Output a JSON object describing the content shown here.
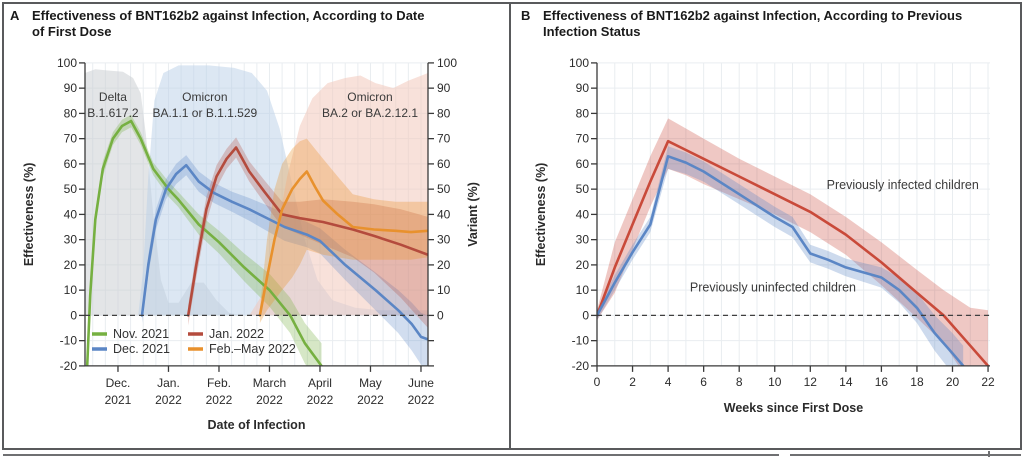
{
  "style": {
    "background": "#ffffff",
    "border_color": "#595a5c",
    "grid_color": "#e9edf0",
    "axis_color": "#3a3a3a",
    "zero_line_color": "#3f3f3f",
    "text_color": "#2b2b2b",
    "annotation_color": "#3a3a3a"
  },
  "chart_data": [
    {
      "id": "A",
      "type": "line",
      "panel_label": "A",
      "title": "Effectiveness of BNT162b2 against Infection, According to Date\nof First Dose",
      "xlabel": "Date of Infection",
      "ylabel_left": "Effectiveness (%)",
      "ylabel_right": "Variant (%)",
      "x_unit": "months since Dec 1, 2021",
      "xlim": [
        -0.653,
        6.139
      ],
      "ylim": [
        -20,
        100
      ],
      "grid_x_step": 0.25,
      "y_ticks_left": [
        -20,
        -10,
        0,
        10,
        20,
        30,
        40,
        50,
        60,
        70,
        80,
        90,
        100
      ],
      "y_ticks_right": [
        0,
        10,
        20,
        30,
        40,
        50,
        60,
        70,
        80,
        90,
        100
      ],
      "x_ticks": [
        {
          "pos": 0,
          "l1": "Dec.",
          "l2": "2021"
        },
        {
          "pos": 1,
          "l1": "Jan.",
          "l2": "2022"
        },
        {
          "pos": 2,
          "l1": "Feb.",
          "l2": "2022"
        },
        {
          "pos": 3,
          "l1": "March",
          "l2": "2022"
        },
        {
          "pos": 4,
          "l1": "April",
          "l2": "2022"
        },
        {
          "pos": 5,
          "l1": "May",
          "l2": "2022"
        },
        {
          "pos": 6,
          "l1": "June",
          "l2": "2022"
        }
      ],
      "variant_regions": [
        {
          "slug": "delta",
          "name": "Delta B.1.617.2",
          "label_lines": [
            "Delta",
            "B.1.617.2"
          ],
          "label_x": -0.1,
          "fill": "#c8ccd0",
          "opacity": 0.5,
          "top": [
            [
              -0.653,
              96
            ],
            [
              -0.45,
              97.5
            ],
            [
              -0.2,
              97
            ],
            [
              0.1,
              96.5
            ],
            [
              0.3,
              94
            ],
            [
              0.45,
              88
            ],
            [
              0.55,
              72
            ],
            [
              0.7,
              40
            ],
            [
              0.85,
              14
            ],
            [
              1.0,
              5
            ],
            [
              1.2,
              5
            ],
            [
              1.45,
              13
            ],
            [
              1.7,
              13
            ],
            [
              1.95,
              6
            ],
            [
              2.2,
              1
            ],
            [
              2.45,
              0
            ]
          ]
        },
        {
          "slug": "omicron-ba1",
          "name": "Omicron BA.1.1 or B.1.1.529",
          "label_lines": [
            "Omicron",
            "BA.1.1 or B.1.1.529"
          ],
          "label_x": 1.72,
          "fill": "#b9d0e8",
          "opacity": 0.5,
          "top": [
            [
              0.4,
              0
            ],
            [
              0.5,
              18
            ],
            [
              0.6,
              55
            ],
            [
              0.72,
              85
            ],
            [
              0.9,
              96
            ],
            [
              1.2,
              99
            ],
            [
              1.8,
              99
            ],
            [
              2.3,
              98
            ],
            [
              2.65,
              96
            ],
            [
              2.95,
              89
            ],
            [
              3.2,
              74
            ],
            [
              3.45,
              52
            ],
            [
              3.7,
              30
            ],
            [
              3.95,
              14
            ],
            [
              4.25,
              6
            ],
            [
              4.7,
              3
            ],
            [
              5.2,
              2
            ],
            [
              6.139,
              2
            ]
          ]
        },
        {
          "slug": "omicron-ba2",
          "name": "Omicron BA.2 or BA.2.12.1",
          "label_lines": [
            "Omicron",
            "BA.2 or BA.2.12.1"
          ],
          "label_x": 4.99,
          "fill": "#f2c9bc",
          "opacity": 0.55,
          "top": [
            [
              2.6,
              0
            ],
            [
              2.85,
              8
            ],
            [
              3.1,
              28
            ],
            [
              3.35,
              55
            ],
            [
              3.6,
              75
            ],
            [
              3.85,
              86
            ],
            [
              4.15,
              92
            ],
            [
              4.5,
              94
            ],
            [
              4.8,
              95
            ],
            [
              5.1,
              92
            ],
            [
              5.45,
              90
            ],
            [
              5.75,
              93
            ],
            [
              6.139,
              96
            ]
          ]
        }
      ],
      "series": [
        {
          "name": "Nov. 2021",
          "color": "#76b041",
          "band_opacity": 0.3,
          "x": [
            -0.61,
            -0.55,
            -0.45,
            -0.3,
            -0.1,
            0.08,
            0.26,
            0.45,
            0.7,
            1.0,
            1.19,
            1.6,
            2.0,
            2.5,
            3.0,
            3.41,
            3.7,
            4.03
          ],
          "y": [
            -20,
            8,
            38,
            58,
            70,
            75,
            77,
            70,
            58,
            50,
            46,
            36,
            29,
            19,
            10,
            0,
            -11,
            -20
          ],
          "lo": [
            -23,
            5,
            35,
            55,
            67.5,
            72.5,
            74.5,
            67.5,
            55.5,
            47,
            43,
            32,
            24.5,
            13.5,
            3.5,
            -7,
            -19,
            -29
          ],
          "hi": [
            -17,
            11,
            41,
            61,
            72.5,
            77.5,
            79.5,
            72.5,
            60.5,
            53,
            49,
            40,
            33.5,
            24.5,
            16.5,
            7,
            -3,
            -11
          ]
        },
        {
          "name": "Dec. 2021",
          "color": "#5b86c5",
          "band_opacity": 0.28,
          "x": [
            0.475,
            0.6,
            0.75,
            0.95,
            1.15,
            1.35,
            1.6,
            1.9,
            2.26,
            2.6,
            2.9,
            3.3,
            3.74,
            4.0,
            4.5,
            5.1,
            5.55,
            5.82,
            6.0,
            6.139
          ],
          "y": [
            0,
            20,
            38,
            50,
            56,
            59.5,
            53,
            48.5,
            45,
            42,
            39,
            35,
            32,
            29.5,
            20,
            10,
            2,
            -3.5,
            -8.5,
            -9.5
          ],
          "lo": [
            -3,
            16,
            34,
            46,
            52,
            55.5,
            49,
            44.5,
            41,
            37.5,
            34,
            29.5,
            27,
            24.5,
            14,
            2,
            -7,
            -14,
            -19.5,
            -22
          ],
          "hi": [
            3,
            24,
            42,
            54,
            60,
            63.5,
            57,
            52.5,
            49,
            46.5,
            44,
            40.5,
            37,
            34.5,
            26,
            17,
            10,
            5,
            1,
            0
          ]
        },
        {
          "name": "Jan. 2022",
          "color": "#b44b3d",
          "band_opacity": 0.28,
          "x": [
            1.39,
            1.55,
            1.75,
            1.95,
            2.15,
            2.34,
            2.6,
            2.9,
            3.25,
            3.6,
            4.06,
            4.65,
            5.07,
            5.6,
            6.139
          ],
          "y": [
            0,
            20,
            42,
            55,
            62,
            66.5,
            57,
            49,
            40,
            38.5,
            37,
            34,
            31.5,
            28,
            24
          ],
          "lo": [
            -4,
            15,
            37,
            50.5,
            58,
            62.5,
            53,
            44.5,
            35,
            32,
            28,
            23,
            17,
            7,
            -5
          ],
          "hi": [
            4,
            25,
            47,
            59.5,
            66,
            70.5,
            61,
            53.5,
            45,
            45,
            46,
            45,
            44,
            42,
            39
          ]
        },
        {
          "name": "Feb.–May 2022",
          "color": "#e8912d",
          "band_opacity": 0.32,
          "x": [
            2.81,
            2.95,
            3.1,
            3.25,
            3.45,
            3.6,
            3.74,
            3.9,
            4.06,
            4.35,
            4.65,
            5.07,
            5.5,
            5.8,
            6.139
          ],
          "y": [
            0,
            15,
            30,
            42,
            50,
            54,
            57,
            51,
            45.5,
            40,
            35,
            34,
            33.5,
            33,
            33.5
          ],
          "lo": [
            -3,
            2,
            6,
            10,
            15,
            20,
            26,
            25,
            24,
            23,
            22,
            22,
            22,
            22,
            23
          ],
          "hi": [
            3,
            30,
            50,
            60,
            66,
            69,
            70,
            66,
            62,
            55,
            48,
            46,
            45,
            45,
            45
          ]
        }
      ],
      "legend_order": [
        [
          0,
          1
        ],
        [
          2,
          3
        ]
      ]
    },
    {
      "id": "B",
      "type": "line",
      "panel_label": "B",
      "title": "Effectiveness of BNT162b2 against Infection, According to Previous\nInfection Status",
      "xlabel": "Weeks since First Dose",
      "ylabel_left": "Effectiveness (%)",
      "x_unit": "weeks",
      "xlim": [
        0,
        22.11
      ],
      "ylim": [
        -20,
        100
      ],
      "grid_x_step": 1,
      "y_ticks_left": [
        -20,
        -10,
        0,
        10,
        20,
        30,
        40,
        50,
        60,
        70,
        80,
        90,
        100
      ],
      "x_ticks": [
        {
          "pos": 0,
          "l1": "0"
        },
        {
          "pos": 2,
          "l1": "2"
        },
        {
          "pos": 4,
          "l1": "4"
        },
        {
          "pos": 6,
          "l1": "6"
        },
        {
          "pos": 8,
          "l1": "8"
        },
        {
          "pos": 10,
          "l1": "10"
        },
        {
          "pos": 12,
          "l1": "12"
        },
        {
          "pos": 14,
          "l1": "14"
        },
        {
          "pos": 16,
          "l1": "16"
        },
        {
          "pos": 18,
          "l1": "18"
        },
        {
          "pos": 20,
          "l1": "20"
        },
        {
          "pos": 22,
          "l1": "22"
        }
      ],
      "series": [
        {
          "name": "Previously infected children",
          "color": "#c94a3a",
          "band_opacity": 0.3,
          "x": [
            0,
            1,
            2,
            3,
            4,
            5,
            6,
            8,
            10,
            12,
            14,
            16,
            18,
            19.5,
            21,
            22
          ],
          "y": [
            0,
            19,
            36,
            53,
            69,
            65.5,
            62,
            55,
            48,
            41,
            32,
            21,
            9,
            0,
            -12,
            -20
          ],
          "lo": [
            -2,
            9,
            26,
            43,
            58,
            55.5,
            52,
            46,
            40,
            33,
            24,
            12,
            -1,
            -11,
            -27,
            -42
          ],
          "hi": [
            2,
            29,
            46,
            63,
            78,
            74,
            70,
            62,
            55,
            48,
            39,
            29,
            18,
            10,
            3,
            2
          ]
        },
        {
          "name": "Previously uninfected children",
          "color": "#5b86c5",
          "band_opacity": 0.3,
          "x": [
            0,
            1,
            2,
            3,
            4,
            5,
            6,
            8,
            10,
            11,
            12,
            13,
            14,
            16,
            17,
            18,
            19,
            20,
            20.6
          ],
          "y": [
            0,
            13,
            25,
            36,
            63,
            60.5,
            57,
            48,
            39,
            35,
            24.5,
            22,
            19,
            15,
            10,
            3,
            -7,
            -15,
            -20
          ],
          "lo": [
            -2,
            10,
            22,
            33,
            58,
            56,
            53,
            44,
            35,
            31,
            21,
            18.5,
            15.5,
            11,
            5,
            -3,
            -14,
            -23,
            -28
          ],
          "hi": [
            2,
            16,
            28,
            39,
            67,
            64.5,
            61,
            52,
            43,
            39,
            28,
            25.5,
            22.5,
            19,
            15,
            9,
            0,
            -7,
            -12
          ]
        }
      ],
      "annotations": [
        {
          "text": "Previously infected children",
          "x": 17.2,
          "y": 50
        },
        {
          "text": "Previously uninfected children",
          "x": 9.9,
          "y": 9.5
        }
      ]
    }
  ]
}
